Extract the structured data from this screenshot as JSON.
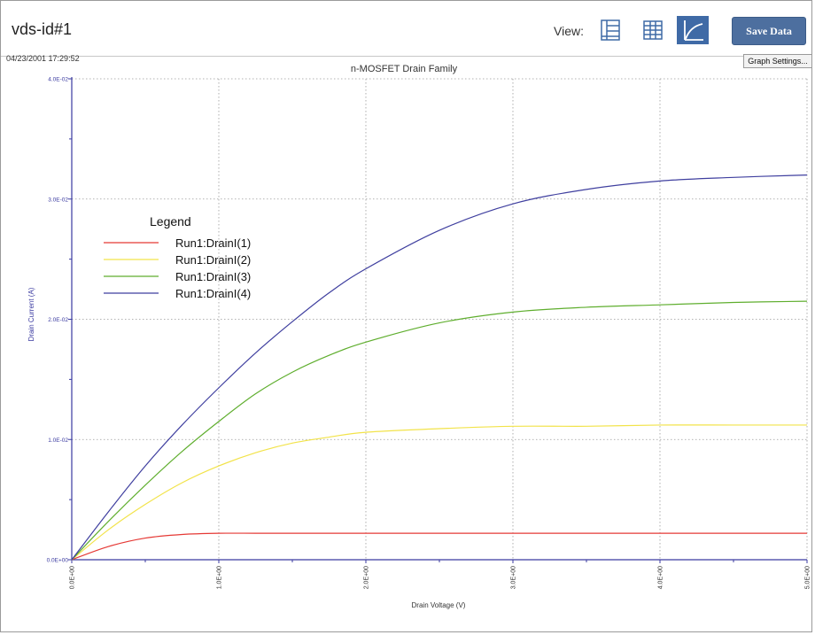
{
  "header": {
    "title": "vds-id#1",
    "view_label": "View:",
    "save_label": "Save Data",
    "view_buttons": [
      {
        "icon": "list-view-icon",
        "active": false
      },
      {
        "icon": "table-view-icon",
        "active": false
      },
      {
        "icon": "graph-view-icon",
        "active": true
      }
    ]
  },
  "timestamp": "04/23/2001 17:29:52",
  "graph_settings_label": "Graph Settings...",
  "colors": {
    "accent": "#4d6f9f",
    "axis": "#3a3aa0"
  },
  "chart_data": {
    "type": "line",
    "title": "n-MOSFET Drain Family",
    "xlabel": "Drain Voltage (V)",
    "ylabel": "Drain Current (A)",
    "xlim": [
      0,
      5
    ],
    "ylim": [
      0,
      0.04
    ],
    "x_ticks": [
      "0.0E+00",
      "1.0E+00",
      "2.0E+00",
      "3.0E+00",
      "4.0E+00",
      "5.0E+00"
    ],
    "y_ticks": [
      "0.0E+00",
      "1.0E-02",
      "2.0E-02",
      "3.0E-02",
      "4.0E-02"
    ],
    "grid": true,
    "legend_title": "Legend",
    "legend_position": "middle-left",
    "x": [
      0,
      0.25,
      0.5,
      0.75,
      1.0,
      1.25,
      1.5,
      1.75,
      2.0,
      2.5,
      3.0,
      3.5,
      4.0,
      4.5,
      5.0
    ],
    "series": [
      {
        "name": "Run1:DrainI(1)",
        "color": "#e53935",
        "values": [
          0,
          0.0011,
          0.0018,
          0.0021,
          0.0022,
          0.0022,
          0.0022,
          0.0022,
          0.0022,
          0.0022,
          0.0022,
          0.0022,
          0.0022,
          0.0022,
          0.0022
        ]
      },
      {
        "name": "Run1:DrainI(2)",
        "color": "#f2e34a",
        "values": [
          0,
          0.0025,
          0.0046,
          0.0064,
          0.0078,
          0.0089,
          0.0097,
          0.0102,
          0.0106,
          0.0109,
          0.0111,
          0.0111,
          0.0112,
          0.0112,
          0.0112
        ]
      },
      {
        "name": "Run1:DrainI(3)",
        "color": "#5fae2e",
        "values": [
          0,
          0.0032,
          0.0062,
          0.009,
          0.0115,
          0.0138,
          0.0156,
          0.017,
          0.0181,
          0.0197,
          0.0206,
          0.021,
          0.0212,
          0.0214,
          0.0215
        ]
      },
      {
        "name": "Run1:DrainI(4)",
        "color": "#3f3f9f",
        "values": [
          0,
          0.004,
          0.0078,
          0.0112,
          0.0143,
          0.0172,
          0.0198,
          0.0222,
          0.0242,
          0.0274,
          0.0296,
          0.0308,
          0.0315,
          0.0318,
          0.032
        ]
      }
    ]
  }
}
